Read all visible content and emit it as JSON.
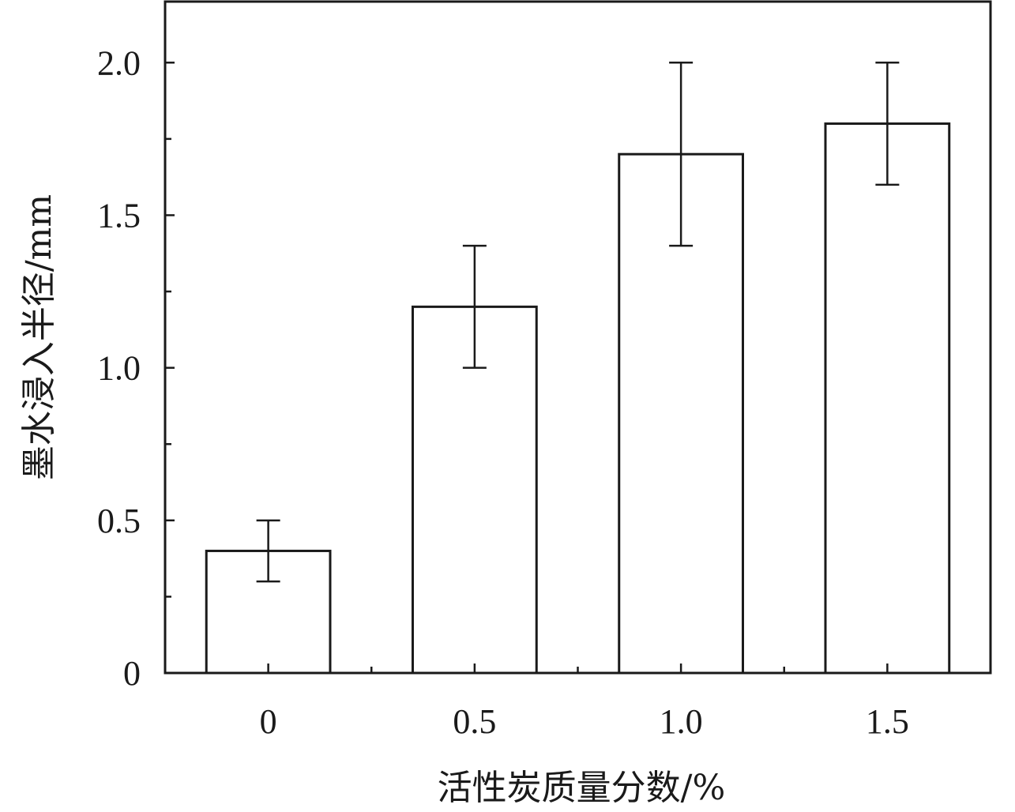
{
  "chart_data": {
    "type": "bar",
    "title": "",
    "xlabel": "活性炭质量分数/%",
    "ylabel": "墨水浸入半径/mm",
    "categories": [
      "0",
      "0.5",
      "1.0",
      "1.5"
    ],
    "values": [
      0.4,
      1.2,
      1.7,
      1.8
    ],
    "errors": [
      0.1,
      0.2,
      0.3,
      0.2
    ],
    "ylim": [
      0,
      2.2
    ],
    "y_ticks": [
      0,
      0.5,
      1.0,
      1.5,
      2.0
    ],
    "y_tick_labels": [
      "0",
      "0.5",
      "1.0",
      "1.5",
      "2.0"
    ],
    "y_minor_ticks": [
      0.25,
      0.75,
      1.25,
      1.75
    ],
    "grid": false,
    "legend": "none",
    "colors": {
      "bar_fill": "#ffffff",
      "stroke": "#1a1a1a"
    }
  }
}
